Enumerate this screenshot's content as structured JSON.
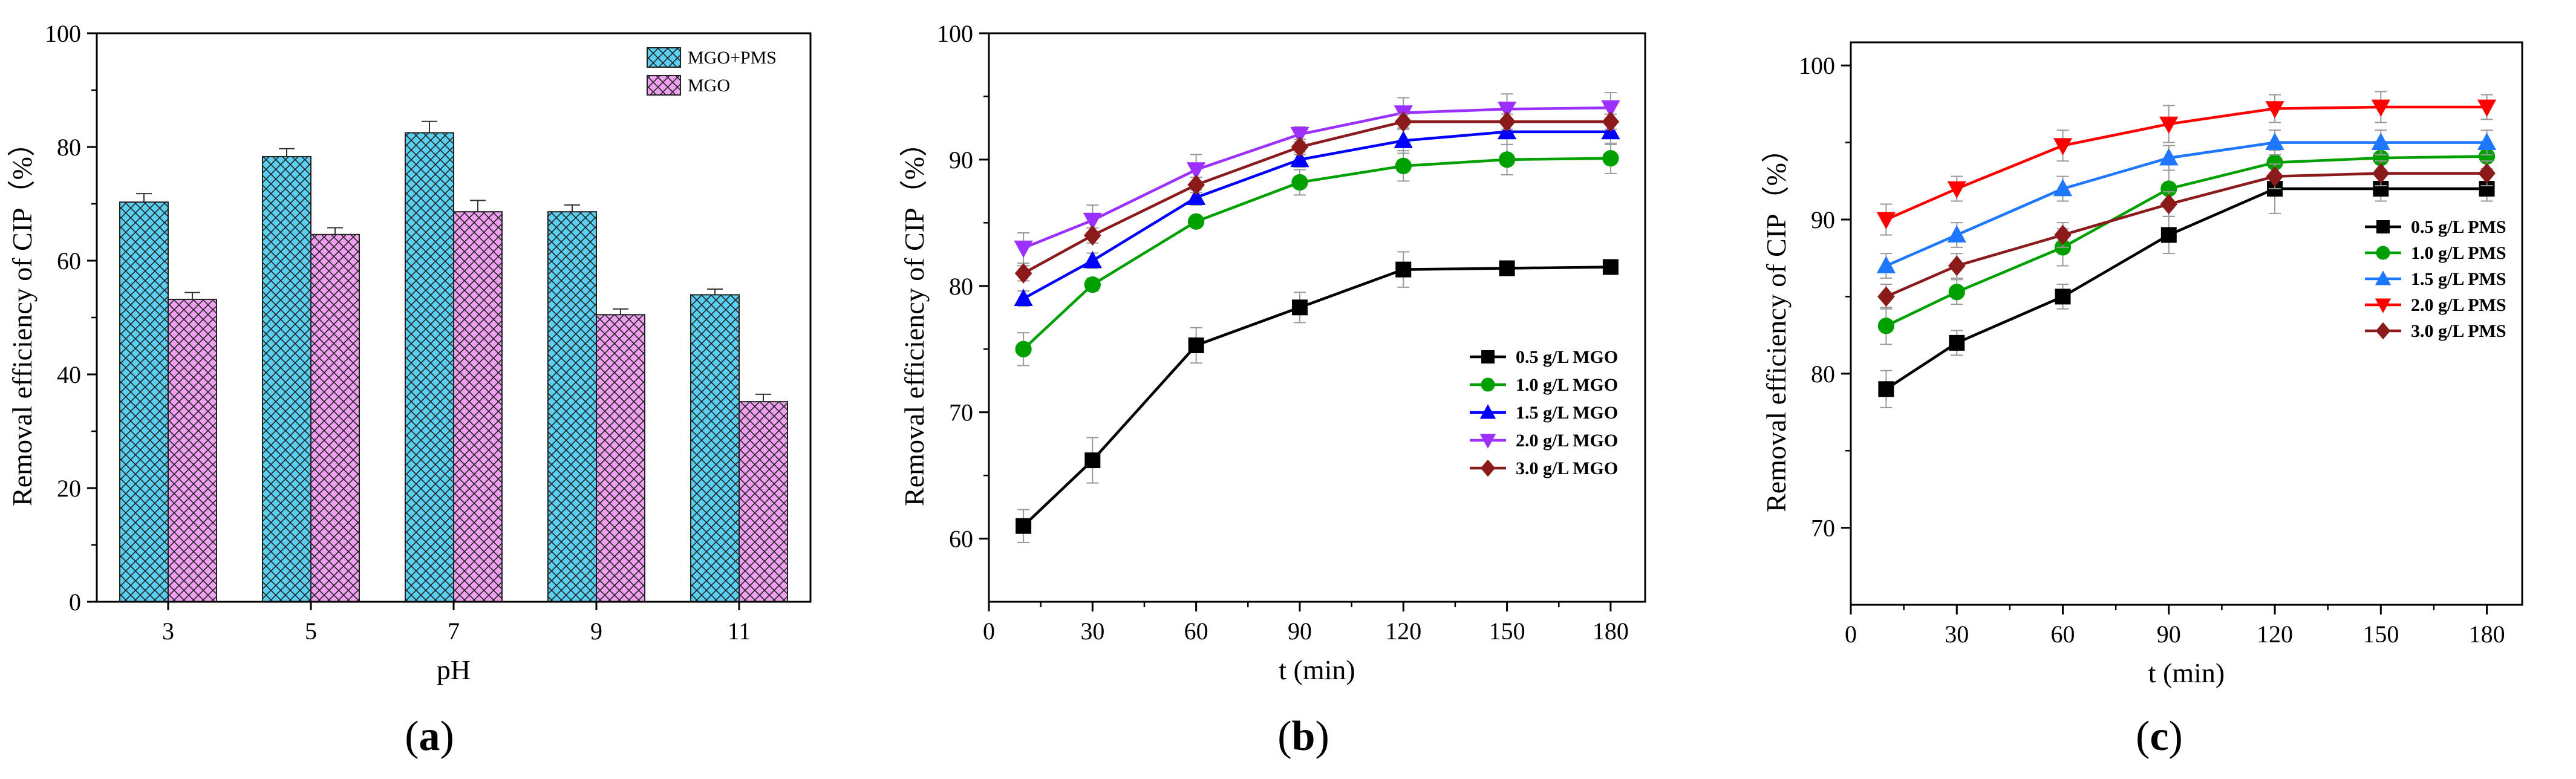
{
  "panels": [
    {
      "label_open": "(",
      "label_letter": "a",
      "label_close": ")",
      "chart_data": {
        "type": "bar",
        "categories": [
          "3",
          "5",
          "7",
          "9",
          "11"
        ],
        "series": [
          {
            "name": "MGO+PMS",
            "values": [
              70.3,
              78.3,
              82.5,
              68.6,
              54.0
            ],
            "errors": [
              1.5,
              1.4,
              2.0,
              1.2,
              1.0
            ],
            "color": "#5bd0f0",
            "hatch": "crosshatch"
          },
          {
            "name": "MGO",
            "values": [
              53.2,
              64.6,
              68.6,
              50.5,
              35.2
            ],
            "errors": [
              1.2,
              1.2,
              2.0,
              1.0,
              1.3
            ],
            "color": "#f0a0f0",
            "hatch": "crosshatch"
          }
        ],
        "xlabel": "pH",
        "ylabel": "Removal efficiency of CIP（%）",
        "ylim": [
          0,
          100
        ],
        "yticks": [
          0,
          20,
          40,
          60,
          80,
          100
        ],
        "legend_position": "top-right"
      }
    },
    {
      "label_open": "(",
      "label_letter": "b",
      "label_close": ")",
      "chart_data": {
        "type": "line",
        "x": [
          10,
          30,
          60,
          90,
          120,
          150,
          180
        ],
        "series": [
          {
            "name": "0.5 g/L MGO",
            "values": [
              61.0,
              66.2,
              75.3,
              78.3,
              81.3,
              81.4,
              81.5
            ],
            "errors": [
              1.3,
              1.8,
              1.4,
              1.2,
              1.4,
              0.3,
              0.3
            ],
            "color": "#000000",
            "marker": "square"
          },
          {
            "name": "1.0 g/L MGO",
            "values": [
              75.0,
              80.1,
              85.1,
              88.2,
              89.5,
              90.0,
              90.1
            ],
            "errors": [
              1.3,
              0.5,
              0.4,
              1.0,
              1.2,
              1.2,
              1.2
            ],
            "color": "#00a000",
            "marker": "circle"
          },
          {
            "name": "1.5 g/L MGO",
            "values": [
              79.0,
              82.0,
              87.0,
              90.0,
              91.5,
              92.2,
              92.2
            ],
            "errors": [
              0.6,
              0.6,
              0.6,
              0.6,
              1.0,
              1.0,
              1.0
            ],
            "color": "#0000ff",
            "marker": "triangle-up"
          },
          {
            "name": "2.0 g/L MGO",
            "values": [
              83.0,
              85.2,
              89.2,
              92.0,
              93.7,
              94.0,
              94.1
            ],
            "errors": [
              1.2,
              1.2,
              1.2,
              0.6,
              1.2,
              1.2,
              1.2
            ],
            "color": "#9b30ff",
            "marker": "triangle-down"
          },
          {
            "name": "3.0 g/L MGO",
            "values": [
              81.0,
              84.0,
              88.0,
              91.0,
              93.0,
              93.0,
              93.0
            ],
            "errors": [
              0.6,
              0.6,
              0.6,
              0.6,
              0.6,
              0.6,
              0.6
            ],
            "color": "#8b1a1a",
            "marker": "diamond"
          }
        ],
        "xlabel": "t (min)",
        "ylabel": "Removal efficiency of CIP（%）",
        "xlim": [
          0,
          190
        ],
        "ylim": [
          55,
          100
        ],
        "xticks": [
          0,
          30,
          60,
          90,
          120,
          150,
          180
        ],
        "yticks": [
          60,
          70,
          80,
          90,
          100
        ],
        "legend_position": "center-right"
      }
    },
    {
      "label_open": "(",
      "label_letter": "c",
      "label_close": ")",
      "chart_data": {
        "type": "line",
        "x": [
          10,
          30,
          60,
          90,
          120,
          150,
          180
        ],
        "series": [
          {
            "name": "0.5 g/L PMS",
            "values": [
              79.0,
              82.0,
              85.0,
              89.0,
              92.0,
              92.0,
              92.0
            ],
            "errors": [
              1.2,
              0.8,
              0.8,
              1.2,
              1.6,
              0.8,
              0.8
            ],
            "color": "#000000",
            "marker": "square"
          },
          {
            "name": "1.0 g/L PMS",
            "values": [
              83.1,
              85.3,
              88.2,
              92.0,
              93.7,
              94.0,
              94.1
            ],
            "errors": [
              1.2,
              0.8,
              1.2,
              1.2,
              0.8,
              0.8,
              0.8
            ],
            "color": "#00a000",
            "marker": "circle"
          },
          {
            "name": "1.5 g/L PMS",
            "values": [
              87.0,
              89.0,
              92.0,
              94.0,
              95.0,
              95.0,
              95.0
            ],
            "errors": [
              0.8,
              0.8,
              0.8,
              0.8,
              0.8,
              0.8,
              0.8
            ],
            "color": "#1e78ff",
            "marker": "triangle-up"
          },
          {
            "name": "2.0 g/L PMS",
            "values": [
              90.0,
              92.0,
              94.8,
              96.2,
              97.2,
              97.3,
              97.3
            ],
            "errors": [
              1.0,
              0.8,
              1.0,
              1.2,
              0.9,
              1.0,
              0.8
            ],
            "color": "#ff0000",
            "marker": "triangle-down"
          },
          {
            "name": "3.0 g/L PMS",
            "values": [
              85.0,
              87.0,
              89.0,
              91.0,
              92.8,
              93.0,
              93.0
            ],
            "errors": [
              0.8,
              0.8,
              0.8,
              0.8,
              0.8,
              0.8,
              0.8
            ],
            "color": "#8b1a1a",
            "marker": "diamond"
          }
        ],
        "xlabel": "t (min)",
        "ylabel": "Removal efficiency of CIP（%）",
        "xlim": [
          0,
          190
        ],
        "ylim": [
          65,
          101.5
        ],
        "xticks": [
          0,
          30,
          60,
          90,
          120,
          150,
          180
        ],
        "yticks": [
          70,
          80,
          90,
          100
        ],
        "legend_position": "center-right"
      }
    }
  ]
}
